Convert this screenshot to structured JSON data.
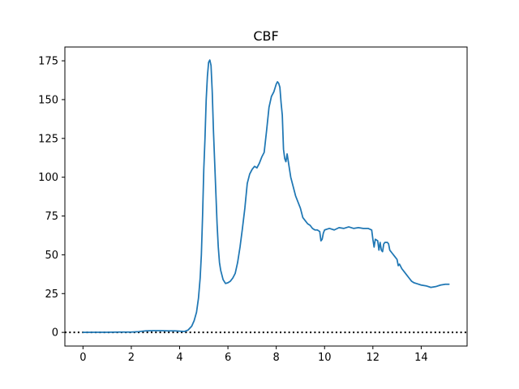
{
  "chart_data": {
    "type": "line",
    "title": "CBF",
    "xlabel": "",
    "ylabel": "",
    "xlim": [
      -0.75,
      15.9
    ],
    "ylim": [
      -8.8,
      183.9
    ],
    "xticks": [
      "0",
      "2",
      "4",
      "6",
      "8",
      "10",
      "12",
      "14"
    ],
    "yticks": [
      "0",
      "25",
      "50",
      "75",
      "100",
      "125",
      "150",
      "175"
    ],
    "grid": false,
    "series": [
      {
        "color": "#1f77b4",
        "x": [
          0.0,
          0.5,
          1.0,
          1.5,
          2.0,
          2.3,
          2.6,
          2.9,
          3.2,
          3.5,
          3.8,
          4.0,
          4.2,
          4.35,
          4.5,
          4.6,
          4.7,
          4.78,
          4.85,
          4.9,
          4.95,
          5.0,
          5.05,
          5.1,
          5.15,
          5.2,
          5.25,
          5.3,
          5.35,
          5.4,
          5.45,
          5.5,
          5.55,
          5.6,
          5.65,
          5.7,
          5.8,
          5.9,
          6.0,
          6.1,
          6.2,
          6.3,
          6.4,
          6.5,
          6.6,
          6.7,
          6.8,
          6.9,
          7.0,
          7.1,
          7.2,
          7.3,
          7.4,
          7.5,
          7.6,
          7.7,
          7.8,
          7.9,
          8.0,
          8.05,
          8.1,
          8.15,
          8.2,
          8.25,
          8.3,
          8.35,
          8.4,
          8.45,
          8.5,
          8.55,
          8.6,
          8.7,
          8.8,
          8.9,
          9.0,
          9.1,
          9.2,
          9.3,
          9.4,
          9.5,
          9.6,
          9.7,
          9.8,
          9.85,
          9.9,
          9.95,
          10.0,
          10.2,
          10.4,
          10.6,
          10.8,
          11.0,
          11.2,
          11.4,
          11.6,
          11.8,
          11.95,
          12.0,
          12.05,
          12.1,
          12.2,
          12.25,
          12.3,
          12.35,
          12.4,
          12.45,
          12.5,
          12.6,
          12.65,
          12.7,
          12.8,
          12.9,
          13.0,
          13.05,
          13.1,
          13.2,
          13.3,
          13.4,
          13.5,
          13.6,
          13.7,
          13.8,
          14.0,
          14.2,
          14.4,
          14.6,
          14.8,
          15.0,
          15.15
        ],
        "y": [
          0.0,
          0.1,
          0.1,
          0.2,
          0.2,
          0.5,
          1.0,
          1.1,
          1.1,
          1.0,
          1.0,
          0.8,
          0.6,
          1.5,
          4.0,
          7.5,
          13.0,
          22.0,
          35.0,
          50.0,
          75.0,
          105.0,
          125.0,
          150.0,
          165.0,
          174.0,
          175.5,
          172.0,
          155.0,
          130.0,
          110.0,
          90.0,
          70.0,
          55.0,
          45.0,
          40.0,
          34.0,
          31.5,
          32.0,
          33.0,
          35.0,
          38.0,
          45.0,
          55.0,
          67.0,
          80.0,
          96.0,
          102.0,
          105.0,
          107.0,
          106.0,
          109.0,
          113.0,
          116.0,
          130.0,
          145.0,
          152.0,
          155.0,
          160.0,
          161.5,
          160.5,
          158.0,
          148.0,
          140.0,
          118.0,
          112.0,
          110.0,
          115.0,
          110.0,
          105.0,
          100.0,
          94.0,
          88.0,
          84.0,
          80.0,
          74.0,
          72.0,
          70.0,
          69.0,
          67.0,
          66.0,
          66.0,
          65.0,
          59.0,
          60.0,
          64.0,
          66.0,
          67.0,
          66.0,
          67.5,
          67.0,
          68.0,
          67.0,
          67.5,
          67.0,
          67.0,
          66.0,
          60.0,
          55.0,
          60.0,
          59.0,
          53.0,
          58.0,
          53.0,
          52.0,
          57.0,
          58.0,
          58.0,
          57.0,
          53.0,
          51.0,
          49.0,
          47.0,
          43.0,
          44.0,
          41.0,
          39.0,
          37.0,
          35.0,
          33.0,
          32.0,
          31.5,
          30.5,
          30.0,
          29.0,
          29.5,
          30.5,
          31.0,
          31.0
        ]
      }
    ],
    "reference_lines": [
      {
        "orientation": "horizontal",
        "y": 0,
        "style": "dotted",
        "color": "#000000"
      }
    ]
  }
}
